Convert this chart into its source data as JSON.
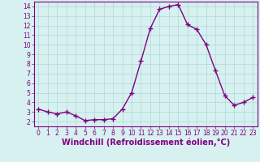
{
  "x": [
    0,
    1,
    2,
    3,
    4,
    5,
    6,
    7,
    8,
    9,
    10,
    11,
    12,
    13,
    14,
    15,
    16,
    17,
    18,
    19,
    20,
    21,
    22,
    23
  ],
  "y": [
    3.3,
    3.0,
    2.8,
    3.0,
    2.6,
    2.1,
    2.2,
    2.2,
    2.3,
    3.3,
    5.0,
    8.3,
    11.7,
    13.7,
    14.0,
    14.2,
    12.1,
    11.6,
    10.0,
    7.3,
    4.7,
    3.7,
    4.0,
    4.5
  ],
  "line_color": "#800080",
  "marker": "+",
  "marker_size": 4,
  "marker_lw": 1.0,
  "bg_color": "#d7f0f0",
  "grid_color": "#b0d8d8",
  "xlabel": "Windchill (Refroidissement éolien,°C)",
  "xlim": [
    -0.5,
    23.5
  ],
  "ylim": [
    1.5,
    14.5
  ],
  "yticks": [
    2,
    3,
    4,
    5,
    6,
    7,
    8,
    9,
    10,
    11,
    12,
    13,
    14
  ],
  "xticks": [
    0,
    1,
    2,
    3,
    4,
    5,
    6,
    7,
    8,
    9,
    10,
    11,
    12,
    13,
    14,
    15,
    16,
    17,
    18,
    19,
    20,
    21,
    22,
    23
  ],
  "tick_color": "#800080",
  "label_color": "#800080",
  "font_size": 5.5,
  "xlabel_font_size": 7,
  "linewidth": 1.0
}
